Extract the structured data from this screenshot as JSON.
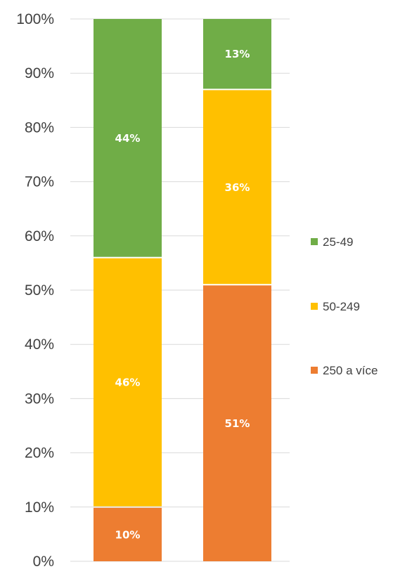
{
  "chart_data": {
    "type": "bar",
    "stacked": true,
    "normalized": true,
    "categories": [
      "",
      ""
    ],
    "series": [
      {
        "name": "250 a více",
        "values": [
          10,
          51
        ],
        "labels": [
          "10%",
          "51%"
        ],
        "color": "#ED7D31"
      },
      {
        "name": "50-249",
        "values": [
          46,
          36
        ],
        "labels": [
          "46%",
          "36%"
        ],
        "color": "#FFC000"
      },
      {
        "name": "25-49",
        "values": [
          44,
          13
        ],
        "labels": [
          "44%",
          "13%"
        ],
        "color": "#70AD47"
      }
    ],
    "ylim": [
      0,
      100
    ],
    "y_ticks": [
      "0%",
      "10%",
      "20%",
      "30%",
      "40%",
      "50%",
      "60%",
      "70%",
      "80%",
      "90%",
      "100%"
    ],
    "legend_order": [
      "25-49",
      "50-249",
      "250 a více"
    ],
    "legend_position": "right",
    "grid": true,
    "gridline_color": "#D9D9D9",
    "title": "",
    "xlabel": "",
    "ylabel": ""
  }
}
